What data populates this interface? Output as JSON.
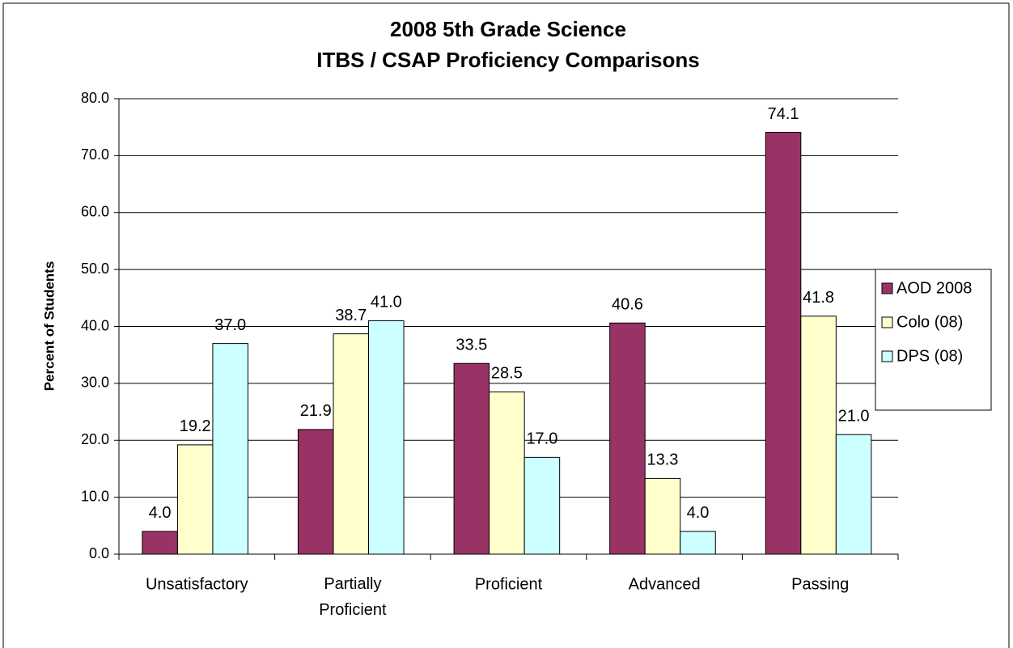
{
  "chart_data": {
    "type": "bar",
    "title": "2008 5th Grade Science",
    "subtitle": "ITBS / CSAP Proficiency Comparisons",
    "y_label": "Percent of Students",
    "categories": [
      "Unsatisfactory",
      "Partially Proficient",
      "Proficient",
      "Advanced",
      "Passing"
    ],
    "series": [
      {
        "name": "AOD 2008",
        "color": "#993366",
        "values": [
          4.0,
          21.9,
          33.5,
          40.6,
          74.1
        ],
        "value_labels": [
          "4.0",
          "21.9",
          "33.5",
          "40.6",
          "74.1"
        ]
      },
      {
        "name": "Colo (08)",
        "color": "#ffffcc",
        "values": [
          19.2,
          38.7,
          28.5,
          13.3,
          41.8
        ],
        "value_labels": [
          "19.2",
          "38.7",
          "28.5",
          "13.3",
          "41.8"
        ]
      },
      {
        "name": "DPS (08)",
        "color": "#ccffff",
        "values": [
          37.0,
          41.0,
          17.0,
          4.0,
          21.0
        ],
        "value_labels": [
          "37.0",
          "41.0",
          "17.0",
          "4.0",
          "21.0"
        ]
      }
    ],
    "ylim": [
      0,
      80
    ],
    "yticks": [
      {
        "value": 0,
        "label": "0.0"
      },
      {
        "value": 10,
        "label": "10.0"
      },
      {
        "value": 20,
        "label": "20.0"
      },
      {
        "value": 30,
        "label": "30.0"
      },
      {
        "value": 40,
        "label": "40.0"
      },
      {
        "value": 50,
        "label": "50.0"
      },
      {
        "value": 60,
        "label": "60.0"
      },
      {
        "value": 70,
        "label": "70.0"
      },
      {
        "value": 80,
        "label": "80.0"
      }
    ],
    "grid": true,
    "legend": "right"
  }
}
